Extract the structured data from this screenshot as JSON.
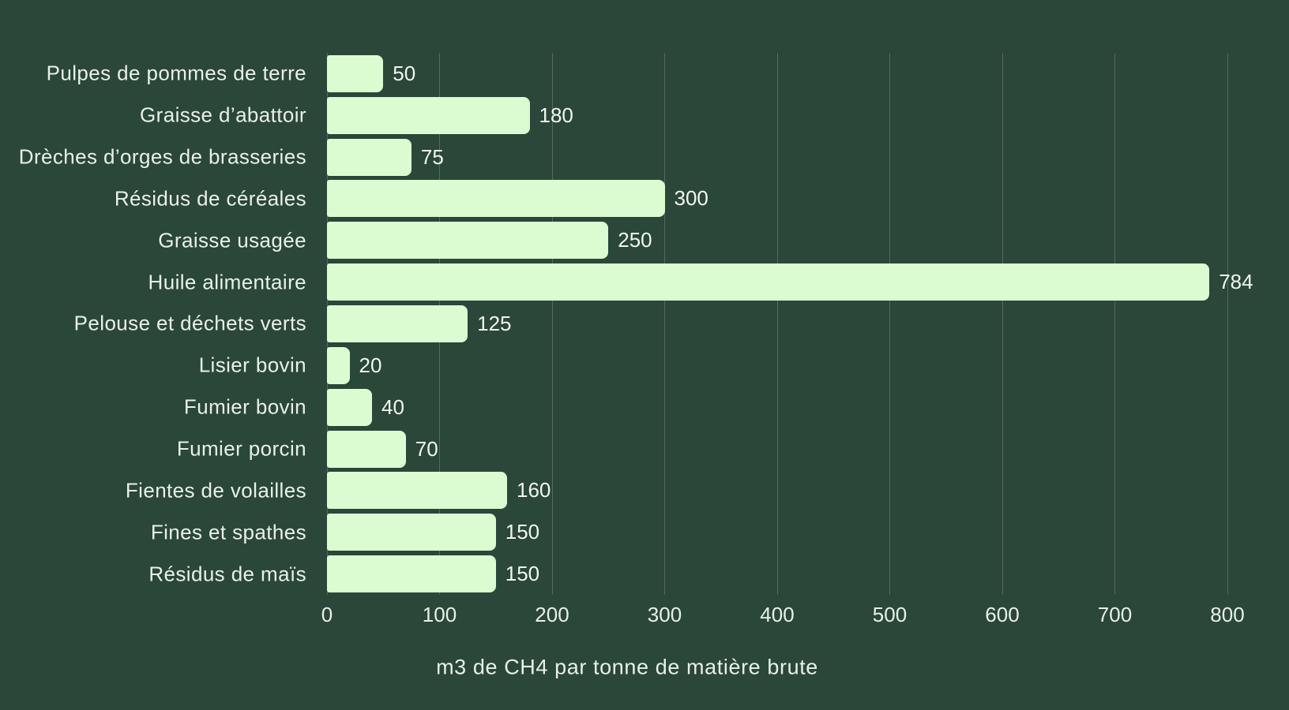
{
  "figure": {
    "background_color": "#2a4739"
  },
  "chart_data": {
    "type": "bar",
    "orientation": "horizontal",
    "title": "",
    "xlabel": "m3 de CH4 par tonne de matière brute",
    "ylabel": "",
    "categories": [
      "Pulpes de pommes de terre",
      "Graisse d’abattoir",
      "Drèches d’orges de brasseries",
      "Résidus de céréales",
      "Graisse usagée",
      "Huile alimentaire",
      "Pelouse et déchets verts",
      "Lisier bovin",
      "Fumier bovin",
      "Fumier porcin",
      "Fientes de volailles",
      "Fines et spathes",
      "Résidus de maïs"
    ],
    "values": [
      50,
      180,
      75,
      300,
      250,
      784,
      125,
      20,
      40,
      70,
      160,
      150,
      150
    ],
    "xlim": [
      0,
      800
    ],
    "xticks": [
      0,
      100,
      200,
      300,
      400,
      500,
      600,
      700,
      800
    ],
    "grid": "vertical-only",
    "legend": "none",
    "bar_color": "#dbfcd1",
    "gridline_color": "rgba(255,255,255,0.20)",
    "label_color": "#e9f0e8",
    "value_label_color": "#f2f5f1"
  }
}
